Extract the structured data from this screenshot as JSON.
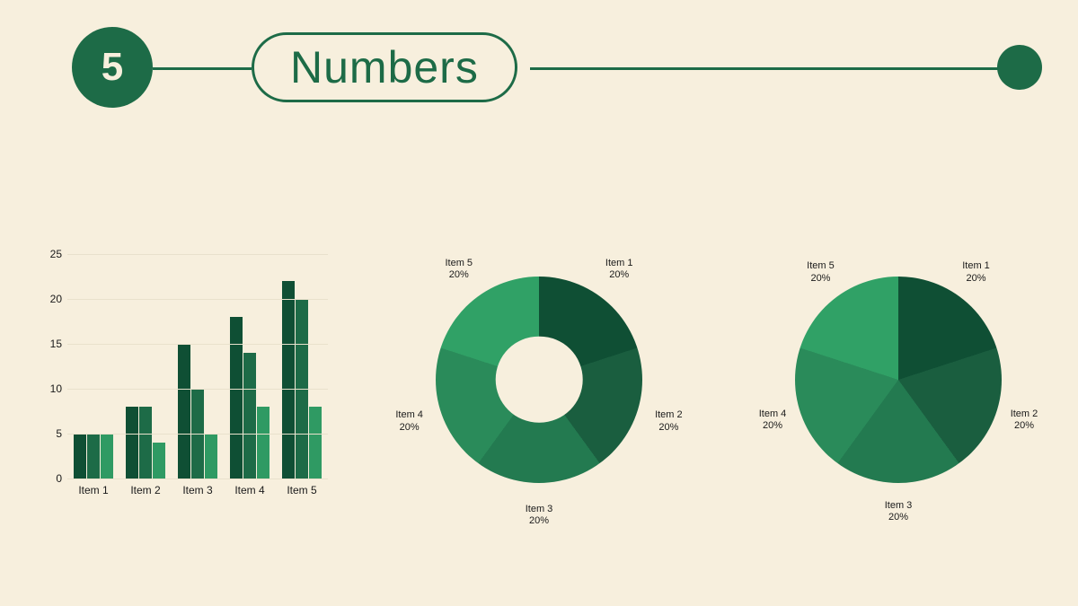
{
  "colors": {
    "background": "#f7efdd",
    "accent_dark": "#1d6b47",
    "text_dark": "#0f3d2a",
    "grid": "#e9e1cc"
  },
  "header": {
    "badge_number": "5",
    "badge_bg": "#1d6b47",
    "badge_fg": "#f7efdd",
    "title": "Numbers",
    "title_border": "#1d6b47",
    "title_color": "#1d6b47",
    "line_color": "#1d6b47",
    "dot_color": "#1d6b47"
  },
  "bar_chart": {
    "type": "bar",
    "ymax": 25,
    "ytick_step": 5,
    "yticks": [
      0,
      5,
      10,
      15,
      20,
      25
    ],
    "categories": [
      "Item 1",
      "Item 2",
      "Item 3",
      "Item 4",
      "Item 5"
    ],
    "series_colors": [
      "#0f4f34",
      "#1d6b47",
      "#2f9a63"
    ],
    "groups": [
      [
        5,
        5,
        5
      ],
      [
        8,
        8,
        4
      ],
      [
        15,
        10,
        5
      ],
      [
        18,
        14,
        8
      ],
      [
        22,
        20,
        8
      ]
    ],
    "grid_color": "#e9e1cc",
    "label_color": "#1a1a1a",
    "label_fontsize": 12
  },
  "donut_chart": {
    "type": "donut",
    "hole_ratio": 0.42,
    "hole_color": "#f7efdd",
    "start_angle_deg": 0,
    "slices": [
      {
        "label": "Item 1",
        "pct": 20,
        "color": "#0f4f34"
      },
      {
        "label": "Item 2",
        "pct": 20,
        "color": "#1a5e3f"
      },
      {
        "label": "Item 3",
        "pct": 20,
        "color": "#237a50"
      },
      {
        "label": "Item 4",
        "pct": 20,
        "color": "#2a8b5a"
      },
      {
        "label": "Item 5",
        "pct": 20,
        "color": "#30a166"
      }
    ],
    "label_color": "#1a1a1a",
    "label_fontsize": 11,
    "label_radius": 1.32
  },
  "pie_chart": {
    "type": "pie",
    "start_angle_deg": 0,
    "slices": [
      {
        "label": "Item 1",
        "pct": 20,
        "color": "#0f4f34"
      },
      {
        "label": "Item 2",
        "pct": 20,
        "color": "#1a5e3f"
      },
      {
        "label": "Item 3",
        "pct": 20,
        "color": "#237a50"
      },
      {
        "label": "Item 4",
        "pct": 20,
        "color": "#2a8b5a"
      },
      {
        "label": "Item 5",
        "pct": 20,
        "color": "#30a166"
      }
    ],
    "label_color": "#1a1a1a",
    "label_fontsize": 11,
    "label_radius": 1.28
  }
}
